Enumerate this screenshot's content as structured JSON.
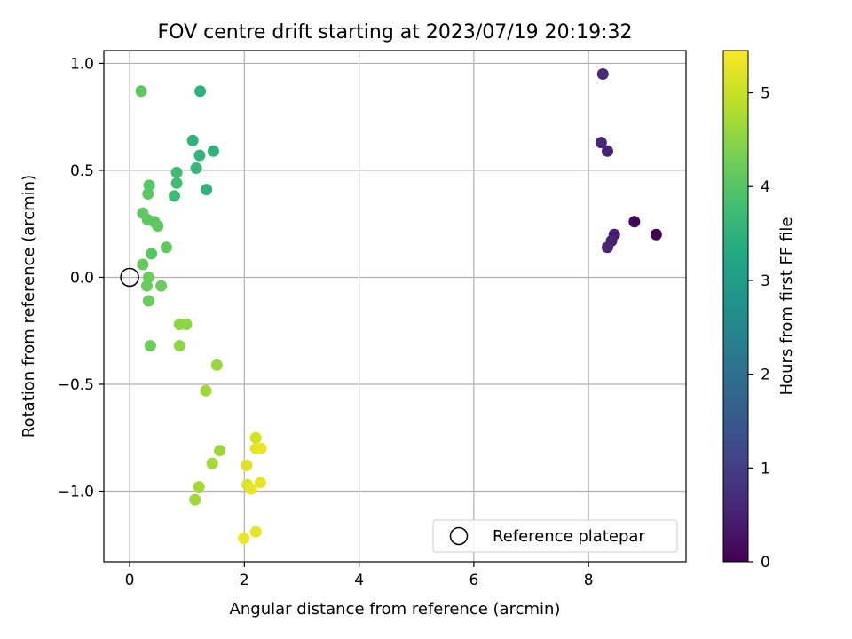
{
  "chart_data": {
    "type": "scatter",
    "title": "FOV centre drift starting at 2023/07/19 20:19:32",
    "xlabel": "Angular distance from reference (arcmin)",
    "ylabel": "Rotation from reference (arcmin)",
    "xlim": [
      -0.45,
      9.7
    ],
    "ylim": [
      -1.33,
      1.06
    ],
    "xticks": [
      0,
      2,
      4,
      6,
      8
    ],
    "xtick_labels": [
      "0",
      "2",
      "4",
      "6",
      "8"
    ],
    "yticks": [
      1.0,
      0.5,
      0.0,
      -0.5,
      -1.0
    ],
    "ytick_labels": [
      "1.0",
      "0.5",
      "0.0",
      "−0.5",
      "−1.0"
    ],
    "grid": true,
    "colormap": "viridis",
    "colorbar": {
      "label": "Hours from first FF file",
      "range": [
        0,
        5.45
      ],
      "ticks": [
        0,
        1,
        2,
        3,
        4,
        5
      ],
      "tick_labels": [
        "0",
        "1",
        "2",
        "3",
        "4",
        "5"
      ]
    },
    "legend": {
      "placement": "lower right",
      "label": "Reference platepar",
      "marker": "open-circle"
    },
    "reference_point": {
      "x": 0.0,
      "y": 0.0
    },
    "points": [
      {
        "x": 9.18,
        "y": 0.2,
        "h": 0.0
      },
      {
        "x": 8.8,
        "y": 0.26,
        "h": 0.1
      },
      {
        "x": 8.45,
        "y": 0.2,
        "h": 0.45
      },
      {
        "x": 8.4,
        "y": 0.17,
        "h": 0.5
      },
      {
        "x": 8.33,
        "y": 0.14,
        "h": 0.55
      },
      {
        "x": 8.33,
        "y": 0.59,
        "h": 0.55
      },
      {
        "x": 8.22,
        "y": 0.63,
        "h": 0.6
      },
      {
        "x": 8.25,
        "y": 0.95,
        "h": 0.65
      },
      {
        "x": 1.23,
        "y": 0.87,
        "h": 3.45
      },
      {
        "x": 1.1,
        "y": 0.64,
        "h": 3.5
      },
      {
        "x": 1.46,
        "y": 0.59,
        "h": 3.5
      },
      {
        "x": 1.22,
        "y": 0.57,
        "h": 3.55
      },
      {
        "x": 1.16,
        "y": 0.51,
        "h": 3.6
      },
      {
        "x": 1.34,
        "y": 0.41,
        "h": 3.5
      },
      {
        "x": 0.82,
        "y": 0.49,
        "h": 3.75
      },
      {
        "x": 0.82,
        "y": 0.44,
        "h": 3.75
      },
      {
        "x": 0.78,
        "y": 0.38,
        "h": 3.7
      },
      {
        "x": 0.2,
        "y": 0.87,
        "h": 4.1
      },
      {
        "x": 0.34,
        "y": 0.43,
        "h": 4.0
      },
      {
        "x": 0.32,
        "y": 0.39,
        "h": 4.05
      },
      {
        "x": 0.23,
        "y": 0.3,
        "h": 4.1
      },
      {
        "x": 0.31,
        "y": 0.27,
        "h": 4.1
      },
      {
        "x": 0.43,
        "y": 0.26,
        "h": 4.05
      },
      {
        "x": 0.49,
        "y": 0.24,
        "h": 4.1
      },
      {
        "x": 0.64,
        "y": 0.14,
        "h": 4.1
      },
      {
        "x": 0.38,
        "y": 0.11,
        "h": 4.0
      },
      {
        "x": 0.23,
        "y": 0.06,
        "h": 4.15
      },
      {
        "x": 0.33,
        "y": 0.0,
        "h": 4.2
      },
      {
        "x": 0.3,
        "y": -0.04,
        "h": 4.2
      },
      {
        "x": 0.55,
        "y": -0.04,
        "h": 4.2
      },
      {
        "x": 0.33,
        "y": -0.11,
        "h": 4.2
      },
      {
        "x": 0.36,
        "y": -0.32,
        "h": 4.2
      },
      {
        "x": 0.87,
        "y": -0.22,
        "h": 4.5
      },
      {
        "x": 0.99,
        "y": -0.22,
        "h": 4.5
      },
      {
        "x": 0.87,
        "y": -0.32,
        "h": 4.5
      },
      {
        "x": 1.52,
        "y": -0.41,
        "h": 4.6
      },
      {
        "x": 1.33,
        "y": -0.53,
        "h": 4.65
      },
      {
        "x": 1.57,
        "y": -0.81,
        "h": 4.65
      },
      {
        "x": 1.44,
        "y": -0.87,
        "h": 4.7
      },
      {
        "x": 1.21,
        "y": -0.98,
        "h": 4.7
      },
      {
        "x": 1.14,
        "y": -1.04,
        "h": 4.65
      },
      {
        "x": 2.2,
        "y": -0.75,
        "h": 5.1
      },
      {
        "x": 2.2,
        "y": -0.8,
        "h": 5.25
      },
      {
        "x": 2.29,
        "y": -0.8,
        "h": 5.3
      },
      {
        "x": 2.04,
        "y": -0.88,
        "h": 5.2
      },
      {
        "x": 2.28,
        "y": -0.96,
        "h": 5.25
      },
      {
        "x": 2.05,
        "y": -0.97,
        "h": 5.15
      },
      {
        "x": 2.12,
        "y": -0.99,
        "h": 5.25
      },
      {
        "x": 2.2,
        "y": -1.19,
        "h": 5.25
      },
      {
        "x": 1.99,
        "y": -1.22,
        "h": 5.3
      }
    ]
  }
}
